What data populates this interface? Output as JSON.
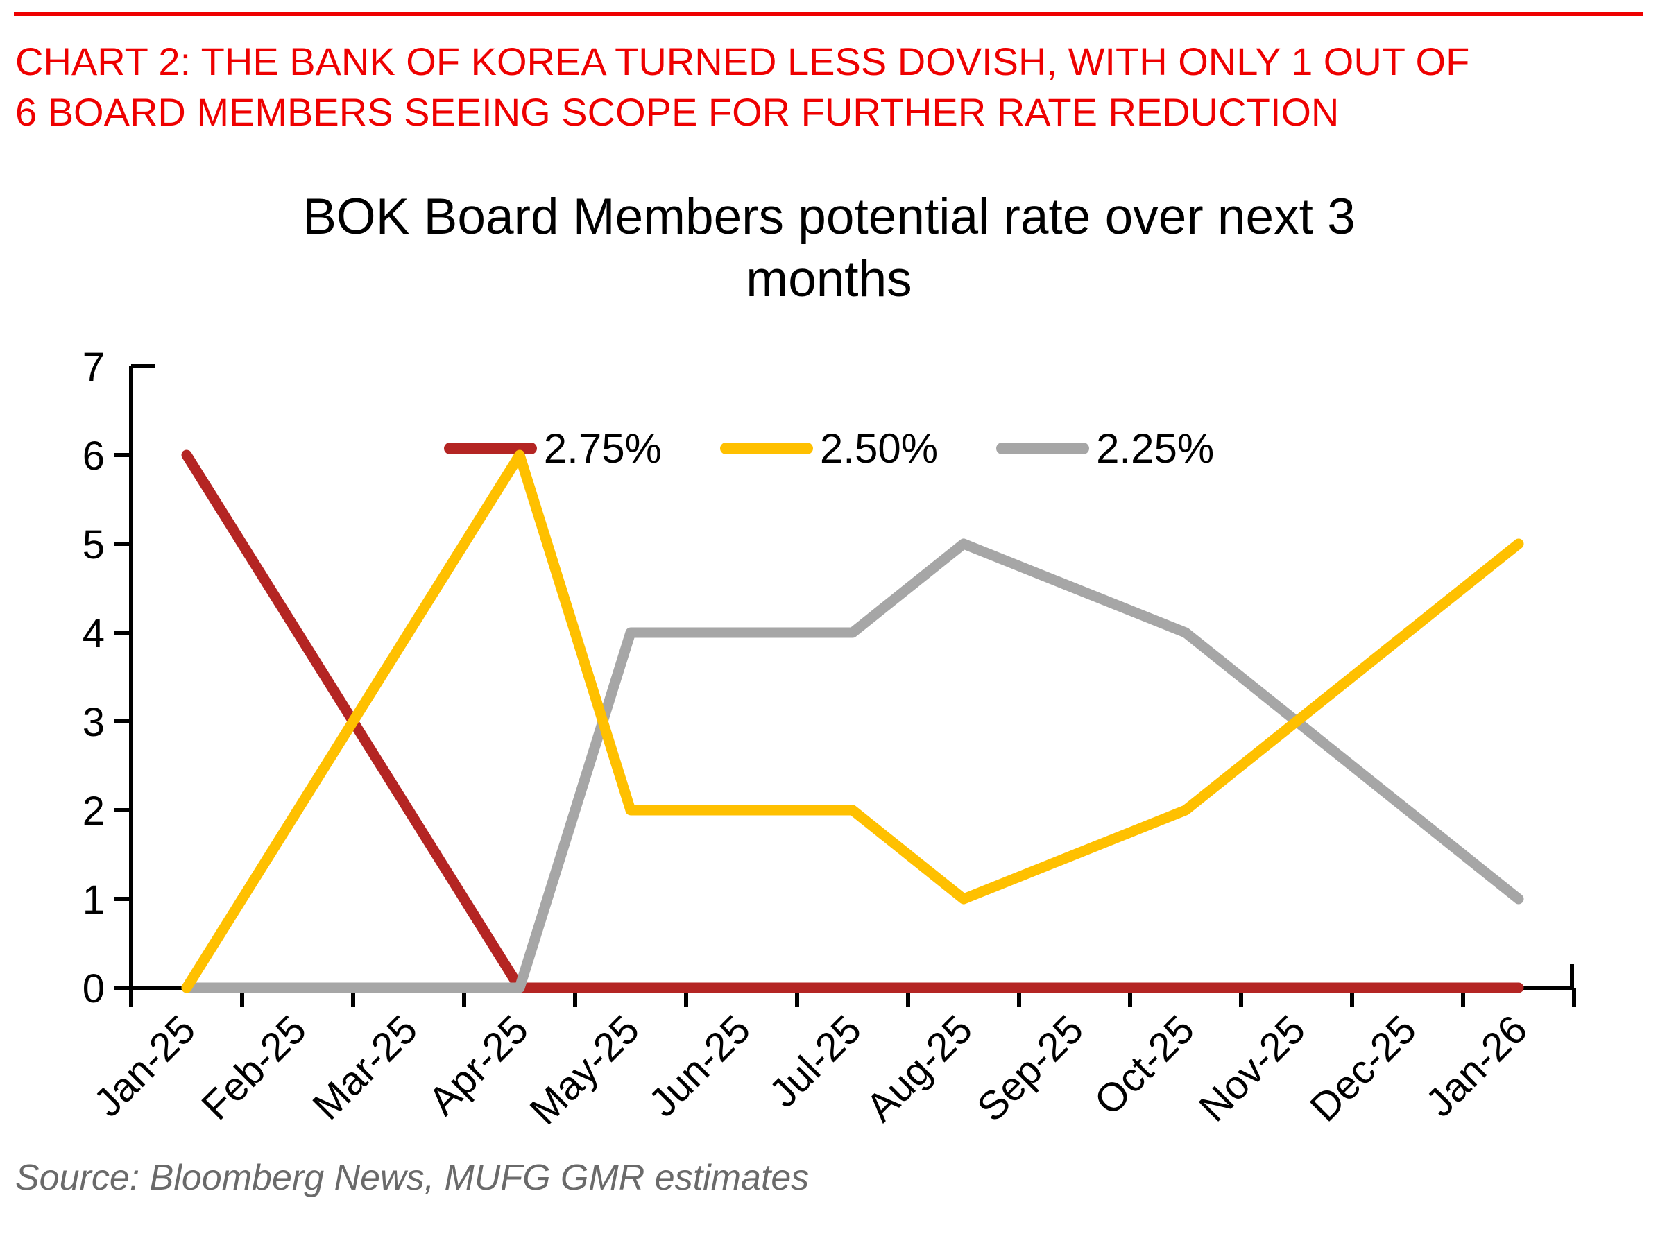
{
  "page": {
    "heading_line1": "CHART 2: THE BANK OF KOREA TURNED LESS DOVISH, WITH ONLY 1 OUT OF",
    "heading_line2": "6 BOARD MEMBERS SEEING SCOPE FOR FURTHER RATE REDUCTION",
    "source": "Source: Bloomberg News, MUFG GMR estimates"
  },
  "colors": {
    "heading_red": "#EE0000",
    "top_rule_red": "#EE0000",
    "axis_black": "#000000",
    "source_gray": "#6A6A6A"
  },
  "chart_data": {
    "type": "line",
    "title_line1": "BOK Board Members potential rate over next 3",
    "title_line2": "months",
    "categories": [
      "Jan-25",
      "Feb-25",
      "Mar-25",
      "Apr-25",
      "May-25",
      "Jun-25",
      "Jul-25",
      "Aug-25",
      "Sep-25",
      "Oct-25",
      "Nov-25",
      "Dec-25",
      "Jan-26"
    ],
    "series": [
      {
        "name": "2.75%",
        "color": "#B42523",
        "values": [
          6,
          4,
          2,
          0,
          0,
          0,
          0,
          0,
          0,
          0,
          0,
          0,
          0
        ]
      },
      {
        "name": "2.50%",
        "color": "#FFC000",
        "values": [
          0,
          2,
          4,
          6,
          2,
          2,
          2,
          1,
          1.5,
          2,
          3,
          4,
          5
        ]
      },
      {
        "name": "2.25%",
        "color": "#A6A6A6",
        "values": [
          0,
          0,
          0,
          0,
          4,
          4,
          4,
          5,
          4.5,
          4,
          3,
          2,
          1
        ]
      }
    ],
    "ylim": [
      0,
      7
    ],
    "yticks": [
      0,
      1,
      2,
      3,
      4,
      5,
      6,
      7
    ],
    "xlabel": "",
    "ylabel": "",
    "grid": false,
    "legend_position": "top",
    "x_label_rotation_deg": 45
  }
}
